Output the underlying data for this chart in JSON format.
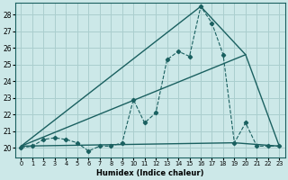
{
  "xlabel": "Humidex (Indice chaleur)",
  "background_color": "#cce8e8",
  "grid_color": "#aacece",
  "line_color": "#1a6060",
  "xlim": [
    -0.5,
    23.5
  ],
  "ylim": [
    19.4,
    28.7
  ],
  "xticks": [
    0,
    1,
    2,
    3,
    4,
    5,
    6,
    7,
    8,
    9,
    10,
    11,
    12,
    13,
    14,
    15,
    16,
    17,
    18,
    19,
    20,
    21,
    22,
    23
  ],
  "yticks": [
    20,
    21,
    22,
    23,
    24,
    25,
    26,
    27,
    28
  ],
  "series1_x": [
    0,
    1,
    2,
    3,
    4,
    5,
    6,
    7,
    8,
    9,
    10,
    11,
    12,
    13,
    14,
    15,
    16,
    17,
    18,
    19,
    20,
    21,
    22,
    23
  ],
  "series1_y": [
    20.0,
    20.1,
    20.5,
    20.6,
    20.5,
    20.3,
    19.8,
    20.1,
    20.1,
    20.3,
    22.9,
    21.5,
    22.1,
    25.3,
    25.8,
    25.5,
    28.5,
    27.5,
    25.6,
    20.3,
    21.5,
    20.1,
    20.1,
    20.1
  ],
  "series2_x": [
    0,
    19,
    23
  ],
  "series2_y": [
    20.1,
    20.3,
    20.1
  ],
  "series3_x": [
    0,
    16,
    20,
    23
  ],
  "series3_y": [
    20.1,
    28.5,
    25.6,
    20.1
  ],
  "series4_x": [
    0,
    20
  ],
  "series4_y": [
    20.1,
    25.6
  ]
}
